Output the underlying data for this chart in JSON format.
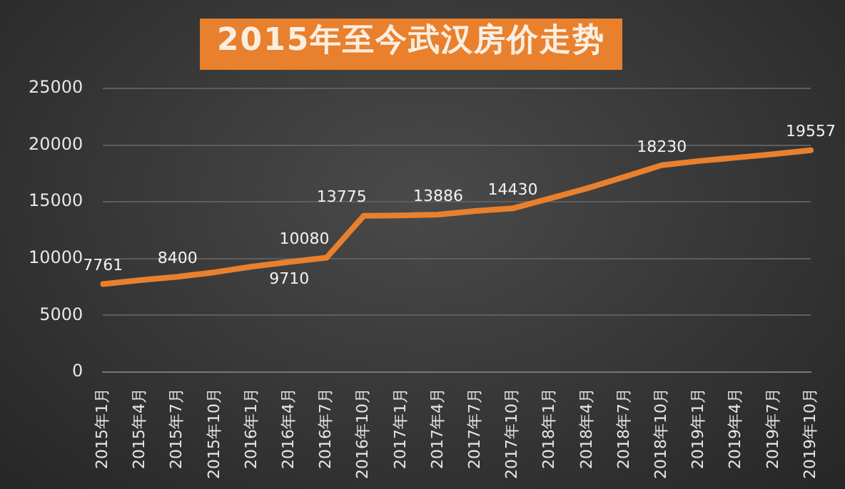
{
  "chart_data": {
    "type": "line",
    "title": "2015年至今武汉房价走势",
    "categories": [
      "2015年1月",
      "2015年4月",
      "2015年7月",
      "2015年10月",
      "2016年1月",
      "2016年4月",
      "2016年7月",
      "2016年10月",
      "2017年1月",
      "2017年4月",
      "2017年7月",
      "2017年10月",
      "2018年1月",
      "2018年4月",
      "2018年7月",
      "2018年10月",
      "2019年1月",
      "2019年4月",
      "2019年7月",
      "2019年10月"
    ],
    "series": [
      {
        "color": "#e8802e",
        "values": [
          7761,
          8100,
          8400,
          8800,
          9300,
          9710,
          10080,
          13775,
          13800,
          13886,
          14200,
          14430,
          15300,
          16200,
          17200,
          18230,
          18600,
          18900,
          19200,
          19557
        ],
        "value_labels": [
          "7761",
          null,
          "8400",
          null,
          null,
          "9710",
          "10080",
          "13775",
          null,
          "13886",
          null,
          "14430",
          null,
          null,
          null,
          "18230",
          null,
          null,
          null,
          "19557"
        ]
      }
    ],
    "ylim": [
      0,
      25000
    ],
    "yticks": [
      0,
      5000,
      10000,
      15000,
      20000,
      25000
    ],
    "grid": "y",
    "legend": false,
    "marker": "none",
    "line_style": "solid"
  }
}
